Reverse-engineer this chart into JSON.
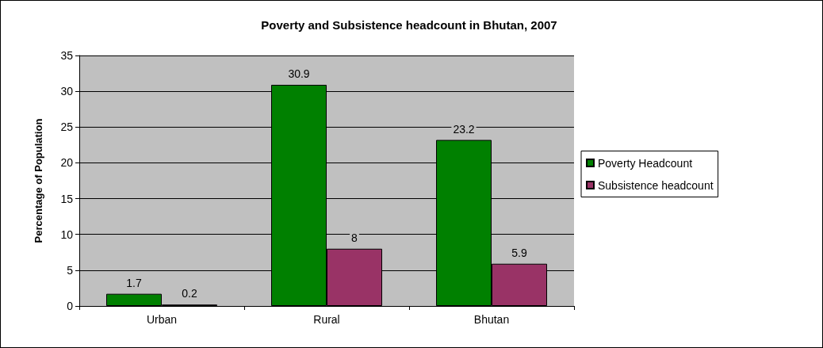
{
  "chart_data": {
    "type": "bar",
    "title": "Poverty and Subsistence headcount in Bhutan, 2007",
    "ylabel": "Percentage of Population",
    "categories": [
      "Urban",
      "Rural",
      "Bhutan"
    ],
    "series": [
      {
        "name": "Poverty Headcount",
        "color": "#008000",
        "values": [
          1.7,
          30.9,
          23.2
        ]
      },
      {
        "name": "Subsistence headcount",
        "color": "#993366",
        "values": [
          0.2,
          8,
          5.9
        ]
      }
    ],
    "ylim": [
      0,
      35
    ],
    "yticks": [
      0,
      5,
      10,
      15,
      20,
      25,
      30,
      35
    ],
    "grid": "y",
    "legend": "right",
    "data_labels": true
  }
}
